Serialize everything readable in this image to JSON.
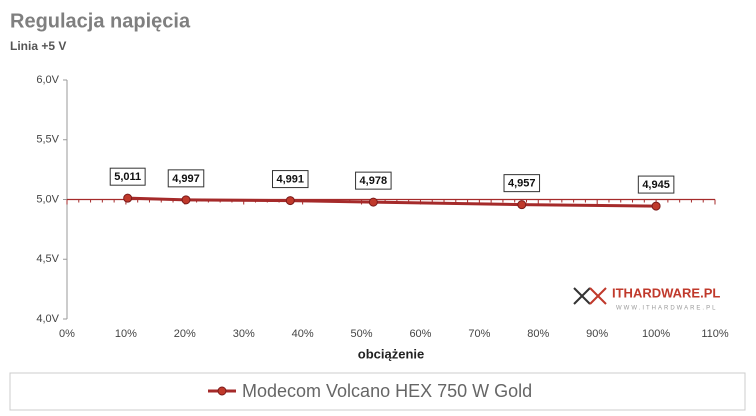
{
  "chart_data": {
    "type": "line",
    "title": "Regulacja napięcia",
    "subtitle": "Linia +5 V",
    "x_label": "obciążenie",
    "watermark": "ITHARDWARE.PL",
    "watermark_url": "WWW.ITHARDWARE.PL",
    "x": [
      10.3,
      20.2,
      37.9,
      52.0,
      77.2,
      100
    ],
    "series": [
      {
        "name": "Modecom Volcano HEX 750 W Gold",
        "color": "#a52a2a",
        "values": [
          5.011,
          4.997,
          4.991,
          4.978,
          4.957,
          4.945
        ],
        "value_labels": [
          "5,011",
          "4,997",
          "4,991",
          "4,978",
          "4,957",
          "4,945"
        ]
      }
    ],
    "xlim": [
      0,
      110
    ],
    "xticks": [
      {
        "value": 0,
        "label": "0%"
      },
      {
        "value": 10,
        "label": "10%"
      },
      {
        "value": 20,
        "label": "20%"
      },
      {
        "value": 30,
        "label": "30%"
      },
      {
        "value": 40,
        "label": "40%"
      },
      {
        "value": 50,
        "label": "50%"
      },
      {
        "value": 60,
        "label": "60%"
      },
      {
        "value": 70,
        "label": "70%"
      },
      {
        "value": 80,
        "label": "80%"
      },
      {
        "value": 90,
        "label": "90%"
      },
      {
        "value": 100,
        "label": "100%"
      },
      {
        "value": 110,
        "label": "110%"
      }
    ],
    "ylim": [
      4.0,
      6.0
    ],
    "yticks": [
      {
        "value": 4.0,
        "label": "4,0V"
      },
      {
        "value": 4.5,
        "label": "4,5V"
      },
      {
        "value": 5.0,
        "label": "5,0V"
      },
      {
        "value": 5.5,
        "label": "5,5V"
      },
      {
        "value": 6.0,
        "label": "6,0V"
      }
    ],
    "x_axis_crossing": 5.0,
    "grid": false,
    "legend": "bottom"
  }
}
